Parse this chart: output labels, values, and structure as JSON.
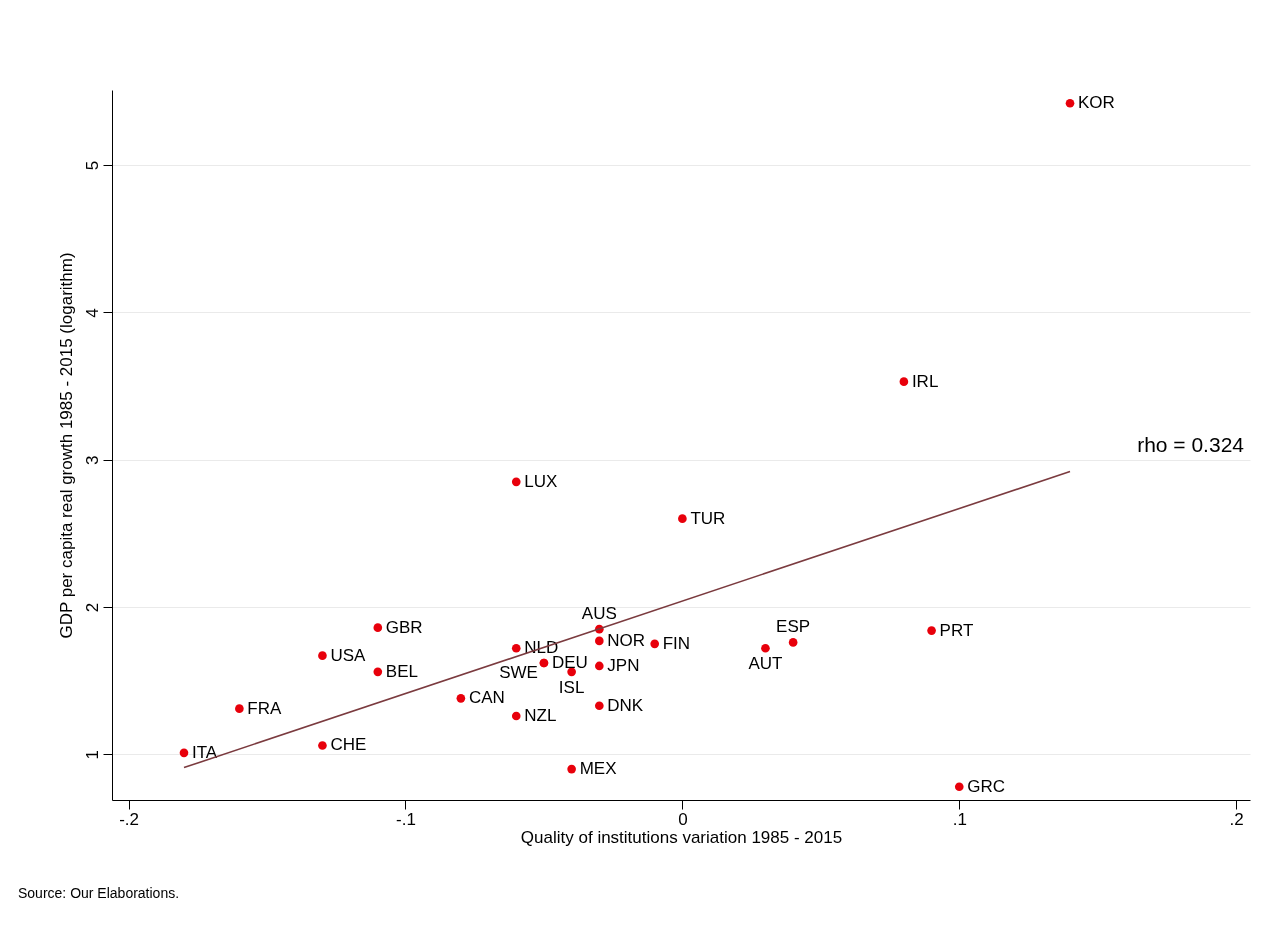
{
  "chart_data": {
    "type": "scatter",
    "xlabel": "Quality of institutions variation 1985 - 2015",
    "ylabel": "GDP per capita real growth 1985 - 2015 (logarithm)",
    "xlim": [
      -0.206,
      0.205
    ],
    "ylim": [
      0.69,
      5.51
    ],
    "xticks": [
      {
        "value": -0.2,
        "label": "-.2"
      },
      {
        "value": -0.1,
        "label": "-.1"
      },
      0,
      {
        "value": 0.1,
        "label": ".1"
      },
      {
        "value": 0.2,
        "label": ".2"
      }
    ],
    "yticks": [
      1,
      2,
      3,
      4,
      5
    ],
    "grid": "y",
    "series": [
      {
        "marker": "circle",
        "color": "#e8000b",
        "x": [
          -0.18,
          -0.16,
          -0.13,
          -0.13,
          -0.11,
          -0.11,
          -0.08,
          -0.06,
          -0.06,
          -0.06,
          -0.05,
          -0.05,
          -0.04,
          -0.04,
          -0.03,
          -0.03,
          -0.03,
          -0.03,
          -0.01,
          0,
          0.03,
          0.04,
          0.08,
          0.09,
          0.1,
          0.14
        ],
        "values": [
          1.01,
          1.31,
          1.67,
          1.06,
          1.86,
          1.56,
          1.38,
          2.85,
          1.72,
          1.26,
          1.62,
          1.62,
          1.56,
          0.9,
          1.85,
          1.77,
          1.6,
          1.33,
          1.75,
          2.6,
          1.72,
          1.76,
          3.53,
          1.84,
          0.78,
          5.42
        ],
        "value_labels": [
          "ITA",
          "FRA",
          "USA",
          "CHE",
          "GBR",
          "BEL",
          "CAN",
          "LUX",
          "NLD",
          "NZL",
          "SWE",
          "DEU",
          "ISL",
          "MEX",
          "AUS",
          "NOR",
          "JPN",
          "DNK",
          "FIN",
          "TUR",
          "AUT",
          "ESP",
          "IRL",
          "PRT",
          "GRC",
          "KOR"
        ]
      },
      {
        "type": "line",
        "color": "#7b3b3f",
        "x": [
          -0.18,
          0.14
        ],
        "values": [
          0.91,
          2.92
        ]
      }
    ],
    "annotations": [
      "rho = 0.324",
      "Source: Our Elaborations."
    ]
  }
}
